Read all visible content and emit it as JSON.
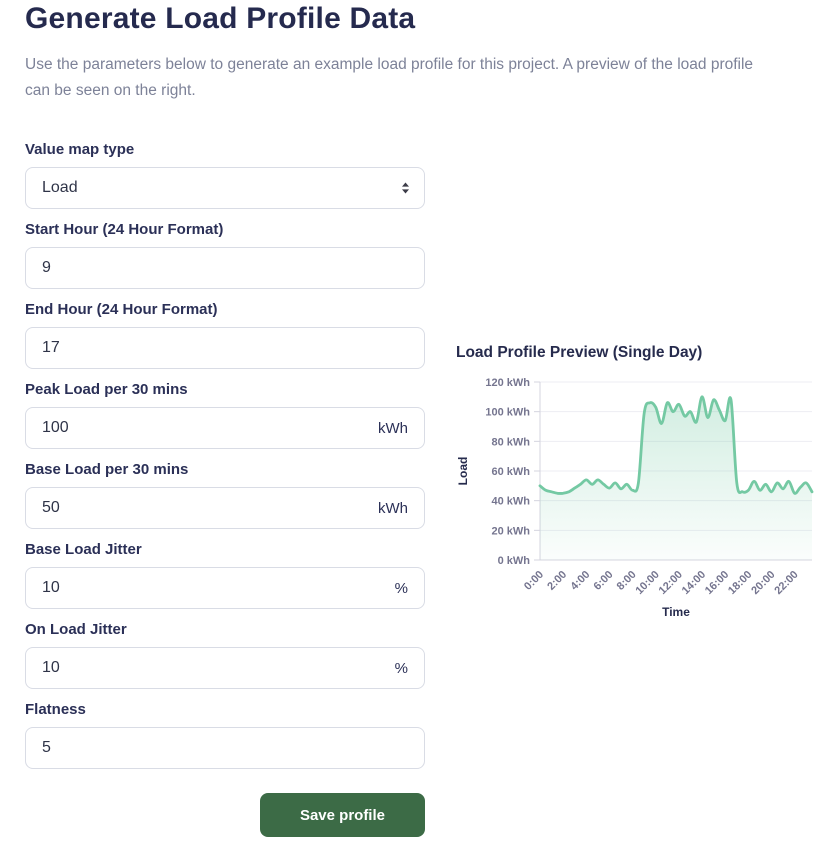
{
  "page": {
    "title": "Generate Load Profile Data",
    "description": "Use the parameters below to generate an example load profile for this project. A preview of the load profile can be seen on the right."
  },
  "form": {
    "value_map_type": {
      "label": "Value map type",
      "value": "Load"
    },
    "start_hour": {
      "label": "Start Hour (24 Hour Format)",
      "value": "9"
    },
    "end_hour": {
      "label": "End Hour (24 Hour Format)",
      "value": "17"
    },
    "peak_load": {
      "label": "Peak Load per 30 mins",
      "value": "100",
      "suffix": "kWh"
    },
    "base_load": {
      "label": "Base Load per 30 mins",
      "value": "50",
      "suffix": "kWh"
    },
    "base_load_jitter": {
      "label": "Base Load Jitter",
      "value": "10",
      "suffix": "%"
    },
    "on_load_jitter": {
      "label": "On Load Jitter",
      "value": "10",
      "suffix": "%"
    },
    "flatness": {
      "label": "Flatness",
      "value": "5"
    },
    "save_label": "Save profile"
  },
  "colors": {
    "accent_green": "#3c6b46",
    "line_green": "#74c9a3",
    "navy": "#262b4d",
    "tick_gray": "#75758f"
  },
  "chart_data": {
    "type": "area",
    "title": "Load Profile Preview (Single Day)",
    "xlabel": "Time",
    "ylabel": "Load",
    "ylim": [
      0,
      120
    ],
    "y_tick_step": 20,
    "y_unit": "kWh",
    "grid": true,
    "legend": "none",
    "x": [
      "0:00",
      "0:30",
      "1:00",
      "1:30",
      "2:00",
      "2:30",
      "3:00",
      "3:30",
      "4:00",
      "4:30",
      "5:00",
      "5:30",
      "6:00",
      "6:30",
      "7:00",
      "7:30",
      "8:00",
      "8:30",
      "9:00",
      "9:30",
      "10:00",
      "10:30",
      "11:00",
      "11:30",
      "12:00",
      "12:30",
      "13:00",
      "13:30",
      "14:00",
      "14:30",
      "15:00",
      "15:30",
      "16:00",
      "16:30",
      "17:00",
      "17:30",
      "18:00",
      "18:30",
      "19:00",
      "19:30",
      "20:00",
      "20:30",
      "21:00",
      "21:30",
      "22:00",
      "22:30",
      "23:00",
      "23:30"
    ],
    "x_tick_labels": [
      "0:00",
      "2:00",
      "4:00",
      "6:00",
      "8:00",
      "10:00",
      "12:00",
      "14:00",
      "16:00",
      "18:00",
      "20:00",
      "22:00"
    ],
    "series": [
      {
        "name": "Load",
        "values": [
          50,
          47,
          46,
          45,
          45,
          46,
          48.5,
          51,
          54,
          51,
          54,
          51,
          48.5,
          52,
          48,
          51,
          47,
          52,
          99,
          106,
          103,
          92,
          106,
          100,
          105,
          97,
          100,
          93,
          110,
          96,
          108,
          101,
          94,
          108,
          52,
          46,
          47,
          53,
          47,
          51,
          46,
          52,
          48,
          53,
          45,
          49,
          52,
          46
        ]
      }
    ]
  }
}
